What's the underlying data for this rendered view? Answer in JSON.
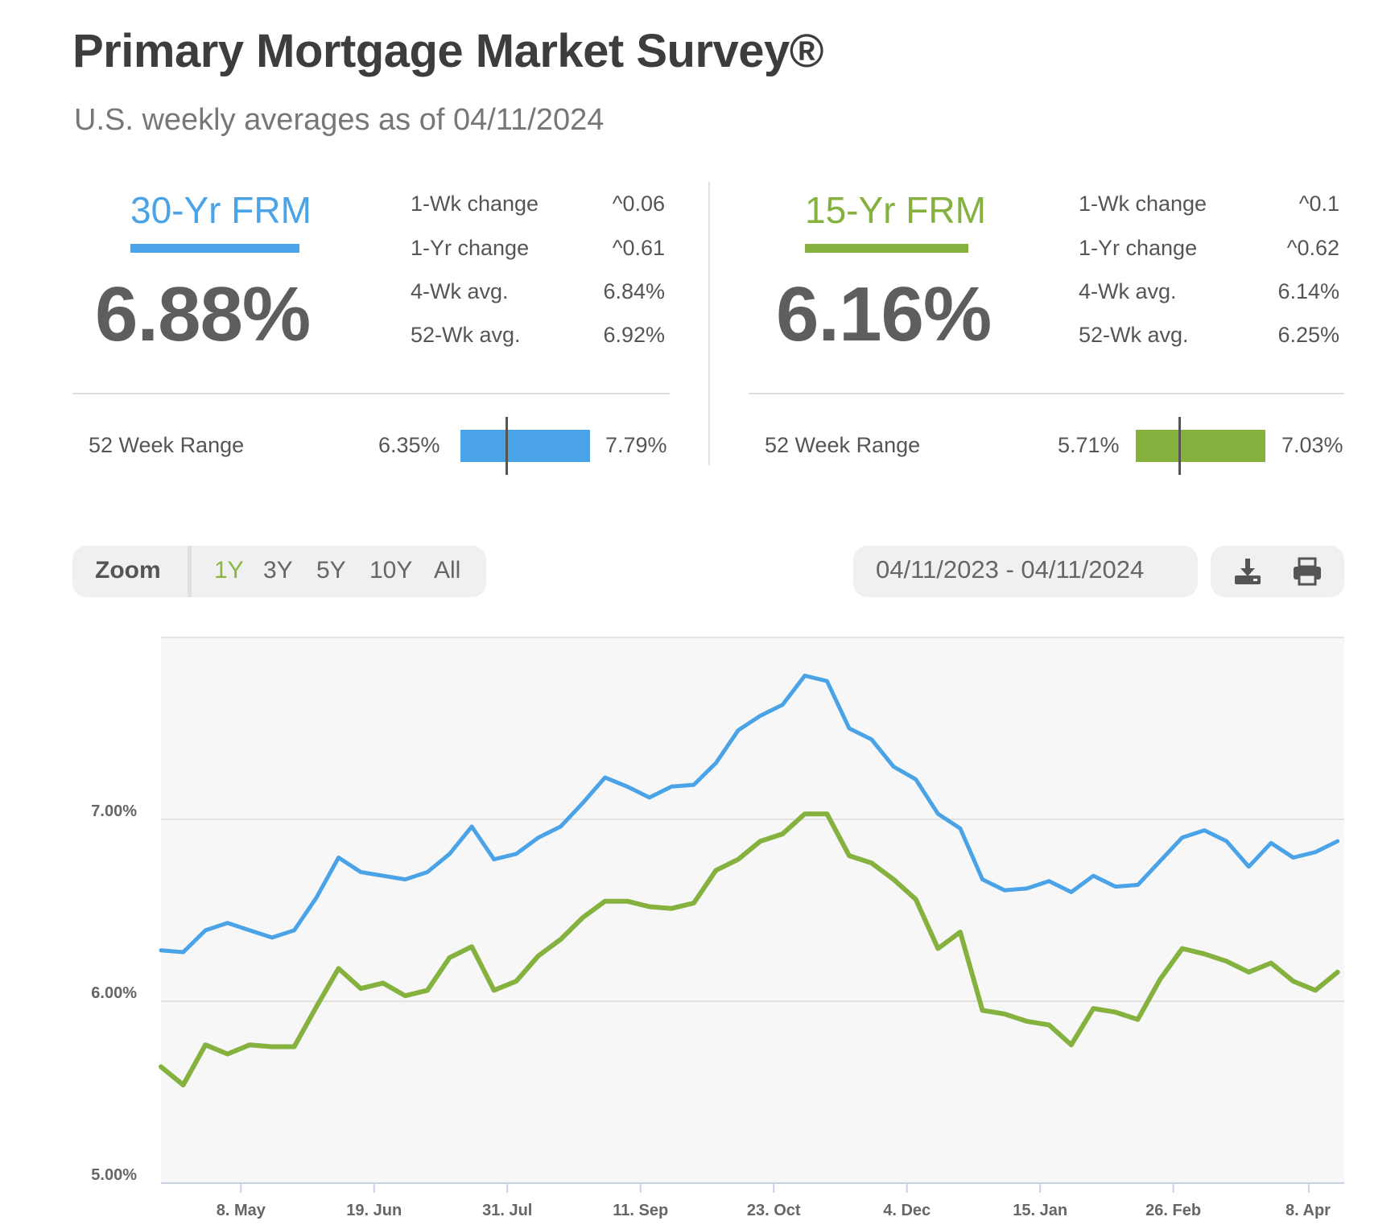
{
  "header": {
    "title": "Primary Mortgage Market Survey®",
    "subtitle": "U.S. weekly averages as of 04/11/2024"
  },
  "rates": [
    {
      "name": "30-Yr FRM",
      "color": "#4aa3e6",
      "value": "6.88%",
      "stats": [
        {
          "label": "1-Wk change",
          "value": "0.06",
          "arrow": "up"
        },
        {
          "label": "1-Yr change",
          "value": "0.61",
          "arrow": "up"
        },
        {
          "label": "4-Wk avg.",
          "value": "6.84%"
        },
        {
          "label": "52-Wk avg.",
          "value": "6.92%"
        }
      ],
      "range": {
        "label": "52 Week Range",
        "low": "6.35%",
        "high": "7.79%",
        "current_fraction": 0.36
      }
    },
    {
      "name": "15-Yr FRM",
      "color": "#85b13f",
      "value": "6.16%",
      "stats": [
        {
          "label": "1-Wk change",
          "value": "0.1",
          "arrow": "up"
        },
        {
          "label": "1-Yr change",
          "value": "0.62",
          "arrow": "up"
        },
        {
          "label": "4-Wk avg.",
          "value": "6.14%"
        },
        {
          "label": "52-Wk avg.",
          "value": "6.25%"
        }
      ],
      "range": {
        "label": "52 Week Range",
        "low": "5.71%",
        "high": "7.03%",
        "current_fraction": 0.34
      }
    }
  ],
  "toolbar": {
    "zoom_label": "Zoom",
    "zoom_options": [
      "1Y",
      "3Y",
      "5Y",
      "10Y",
      "All"
    ],
    "active_zoom": "1Y",
    "date_range": "04/11/2023 - 04/11/2024",
    "icons": [
      "download-icon",
      "print-icon"
    ]
  },
  "chart_data": {
    "type": "line",
    "ylim": [
      5.0,
      8.0
    ],
    "yticks": [
      5.0,
      6.0,
      7.0
    ],
    "ytick_labels": [
      "5.00%",
      "6.00%",
      "7.00%"
    ],
    "xtick_labels": [
      "8. May",
      "19. Jun",
      "31. Jul",
      "11. Sep",
      "23. Oct",
      "4. Dec",
      "15. Jan",
      "26. Feb",
      "8. Apr"
    ],
    "xtick_index": [
      3.6,
      9.6,
      15.6,
      21.6,
      27.6,
      33.6,
      39.6,
      45.6,
      51.7
    ],
    "grid": true,
    "legend": "none",
    "series": [
      {
        "color": "#4aa3e6",
        "values": [
          6.28,
          6.27,
          6.39,
          6.43,
          6.39,
          6.35,
          6.39,
          6.57,
          6.79,
          6.71,
          6.69,
          6.67,
          6.71,
          6.81,
          6.96,
          6.78,
          6.81,
          6.9,
          6.96,
          7.09,
          7.23,
          7.18,
          7.12,
          7.18,
          7.19,
          7.31,
          7.49,
          7.57,
          7.63,
          7.79,
          7.76,
          7.5,
          7.44,
          7.29,
          7.22,
          7.03,
          6.95,
          6.67,
          6.61,
          6.62,
          6.66,
          6.6,
          6.69,
          6.63,
          6.64,
          6.77,
          6.9,
          6.94,
          6.88,
          6.74,
          6.87,
          6.79,
          6.82,
          6.88
        ]
      },
      {
        "color": "#85b13f",
        "values": [
          5.64,
          5.54,
          5.76,
          5.71,
          5.76,
          5.75,
          5.75,
          5.97,
          6.18,
          6.07,
          6.1,
          6.03,
          6.06,
          6.24,
          6.3,
          6.06,
          6.11,
          6.25,
          6.34,
          6.46,
          6.55,
          6.55,
          6.52,
          6.51,
          6.54,
          6.72,
          6.78,
          6.88,
          6.92,
          7.03,
          7.03,
          6.8,
          6.76,
          6.67,
          6.56,
          6.29,
          6.38,
          5.95,
          5.93,
          5.89,
          5.87,
          5.76,
          5.96,
          5.94,
          5.9,
          6.12,
          6.29,
          6.26,
          6.22,
          6.16,
          6.21,
          6.11,
          6.06,
          6.16
        ]
      }
    ]
  }
}
